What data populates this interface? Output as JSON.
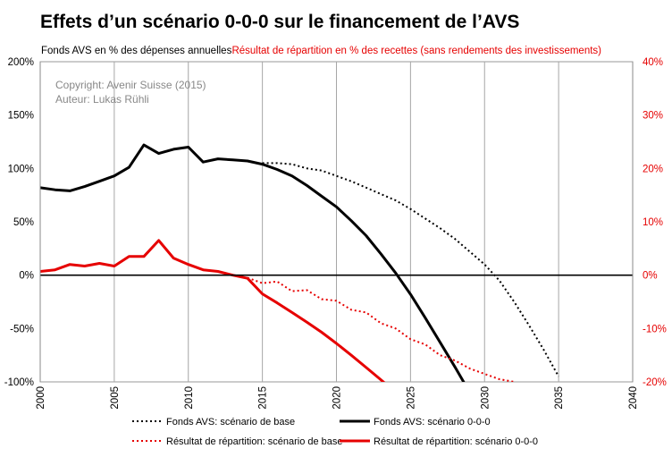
{
  "chart_data": {
    "type": "line",
    "title": "Effets d’un scénario 0-0-0 sur le financement de l’AVS",
    "left_axis": {
      "label": "Fonds AVS en % des dépenses annuelles",
      "range": [
        -100,
        200
      ],
      "ticks": [
        200,
        150,
        100,
        50,
        0,
        -50,
        -100
      ],
      "tick_labels": [
        "200%",
        "150%",
        "100%",
        "50%",
        "0%",
        "-50%",
        "-100%"
      ],
      "color": "#000000"
    },
    "right_axis": {
      "label": "Résultat de répartition en % des recettes (sans rendements des investissements)",
      "range": [
        -20,
        40
      ],
      "ticks": [
        40,
        30,
        20,
        10,
        0,
        -10,
        -20
      ],
      "tick_labels": [
        "40%",
        "30%",
        "20%",
        "10%",
        "0%",
        "-10%",
        "-20%"
      ],
      "color": "#e60000"
    },
    "x_axis": {
      "range": [
        2000,
        2040
      ],
      "ticks": [
        2000,
        2005,
        2010,
        2015,
        2020,
        2025,
        2030,
        2035,
        2040
      ],
      "tick_labels": [
        "2000",
        "2005",
        "2010",
        "2015",
        "2020",
        "2025",
        "2030",
        "2035",
        "2040"
      ]
    },
    "grid": {
      "vertical": true,
      "horizontal": false
    },
    "annotation": [
      "Copyright: Avenir Suisse (2015)",
      "Auteur: Lukas Rühli"
    ],
    "series": [
      {
        "name": "Fonds AVS: scénario de base",
        "axis": "left",
        "color": "#000000",
        "style": "dotted",
        "x": [
          2015,
          2016,
          2017,
          2018,
          2019,
          2020,
          2021,
          2022,
          2023,
          2024,
          2025,
          2026,
          2027,
          2028,
          2029,
          2030,
          2031,
          2032,
          2033,
          2034,
          2035
        ],
        "y": [
          105,
          105,
          104,
          100,
          98,
          93,
          88,
          82,
          76,
          70,
          62,
          53,
          44,
          34,
          22,
          10,
          -5,
          -25,
          -47,
          -70,
          -95
        ]
      },
      {
        "name": "Fonds AVS: scénario 0-0-0",
        "axis": "left",
        "color": "#000000",
        "style": "solid",
        "x": [
          2000,
          2001,
          2002,
          2003,
          2004,
          2005,
          2006,
          2007,
          2008,
          2009,
          2010,
          2011,
          2012,
          2013,
          2014,
          2015,
          2016,
          2017,
          2018,
          2019,
          2020,
          2021,
          2022,
          2023,
          2024,
          2025,
          2026,
          2027,
          2028,
          2029
        ],
        "y": [
          82,
          80,
          79,
          83,
          88,
          93,
          101,
          122,
          114,
          118,
          120,
          106,
          109,
          108,
          107,
          104,
          99,
          93,
          84,
          74,
          64,
          51,
          37,
          20,
          2,
          -18,
          -40,
          -63,
          -86,
          -110
        ]
      },
      {
        "name": "Résultat de répartition: scénario de base",
        "axis": "right",
        "color": "#e60000",
        "style": "dotted",
        "x": [
          2014,
          2015,
          2016,
          2017,
          2018,
          2019,
          2020,
          2021,
          2022,
          2023,
          2024,
          2025,
          2026,
          2027,
          2028,
          2029,
          2030,
          2031,
          2032
        ],
        "y": [
          -0.5,
          -1.5,
          -1.2,
          -3,
          -2.8,
          -4.5,
          -4.8,
          -6.5,
          -7,
          -9,
          -10,
          -12,
          -13,
          -15,
          -16,
          -17.5,
          -18.5,
          -19.5,
          -20
        ]
      },
      {
        "name": "Résultat de répartition: scénario 0-0-0",
        "axis": "right",
        "color": "#e60000",
        "style": "solid",
        "x": [
          2000,
          2001,
          2002,
          2003,
          2004,
          2005,
          2006,
          2007,
          2008,
          2009,
          2010,
          2011,
          2012,
          2013,
          2014,
          2015,
          2016,
          2017,
          2018,
          2019,
          2020,
          2021,
          2022,
          2023,
          2024
        ],
        "y": [
          0.7,
          1,
          2,
          1.7,
          2.2,
          1.7,
          3.5,
          3.5,
          6.5,
          3.2,
          2,
          1,
          0.7,
          0,
          -0.6,
          -3.5,
          -5.2,
          -7,
          -8.8,
          -10.7,
          -12.8,
          -15,
          -17.3,
          -19.6,
          -22
        ]
      }
    ],
    "legend": {
      "placement": "bottom",
      "items": [
        "Fonds AVS: scénario de base",
        "Fonds AVS: scénario 0-0-0",
        "Résultat de répartition: scénario de base",
        "Résultat de répartition: scénario 0-0-0"
      ]
    }
  }
}
